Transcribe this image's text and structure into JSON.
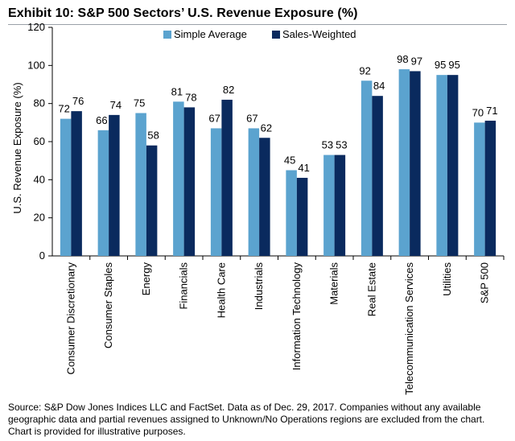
{
  "title": "Exhibit 10: S&P 500 Sectors’ U.S. Revenue Exposure (%)",
  "source": "Source: S&P Dow Jones Indices LLC and FactSet.  Data as of Dec. 29, 2017.  Companies without any available geographic data and partial revenues assigned to Unknown/No Operations regions are excluded from the chart.  Chart is provided for illustrative purposes.",
  "colors": {
    "simple": "#5ba3cf",
    "weighted": "#0a2a5e"
  },
  "chart_data": {
    "type": "bar",
    "title": "Exhibit 10: S&P 500 Sectors’ U.S. Revenue Exposure (%)",
    "xlabel": "",
    "ylabel": "U.S. Revenue Exposure (%)",
    "ylim": [
      0,
      120
    ],
    "yticks": [
      "0",
      "20",
      "40",
      "60",
      "80",
      "100",
      "120"
    ],
    "grid": false,
    "legend": "top-center",
    "categories": [
      "Consumer Discretionary",
      "Consumer Staples",
      "Energy",
      "Financials",
      "Health Care",
      "Industrials",
      "Information Technology",
      "Materials",
      "Real Estate",
      "Telecommunication Services",
      "Utilities",
      "S&P 500"
    ],
    "series": [
      {
        "name": "Simple Average",
        "values": [
          72,
          66,
          75,
          81,
          67,
          67,
          45,
          53,
          92,
          98,
          95,
          70
        ]
      },
      {
        "name": "Sales-Weighted",
        "values": [
          76,
          74,
          58,
          78,
          82,
          62,
          41,
          53,
          84,
          97,
          95,
          71
        ]
      }
    ]
  }
}
